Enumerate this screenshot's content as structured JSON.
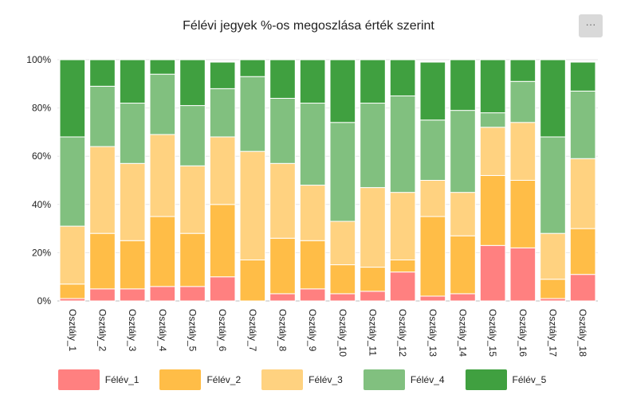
{
  "menu": {
    "label": "···"
  },
  "chart_data": {
    "type": "bar",
    "stacked": true,
    "title": "Félévi jegyek %-os megoszlása érték szerint",
    "categories": [
      "Osztály_1",
      "Osztály_2",
      "Osztály_3",
      "Osztály_4",
      "Osztály_5",
      "Osztály_6",
      "Osztály_7",
      "Osztály_8",
      "Osztály_9",
      "Osztály_10",
      "Osztály_11",
      "Osztály_12",
      "Osztály_13",
      "Osztály_14",
      "Osztály_15",
      "Osztály_16",
      "Osztály_17",
      "Osztály_18"
    ],
    "ylim": [
      0,
      100
    ],
    "yticks": [
      "0%",
      "20%",
      "40%",
      "60%",
      "80%",
      "100%"
    ],
    "grid": true,
    "legend_position": "bottom",
    "series": [
      {
        "name": "Félév_1",
        "color": "#ff8080",
        "values": [
          1,
          5,
          5,
          6,
          6,
          10,
          0,
          3,
          5,
          3,
          4,
          12,
          2,
          3,
          23,
          22,
          1,
          11
        ]
      },
      {
        "name": "Félév_2",
        "color": "#ffbd47",
        "values": [
          6,
          23,
          20,
          29,
          22,
          30,
          17,
          23,
          20,
          12,
          10,
          5,
          33,
          24,
          29,
          28,
          8,
          19
        ]
      },
      {
        "name": "Félév_3",
        "color": "#ffd280",
        "values": [
          24,
          36,
          32,
          34,
          28,
          28,
          45,
          31,
          23,
          18,
          33,
          28,
          15,
          18,
          20,
          24,
          19,
          29
        ]
      },
      {
        "name": "Félév_4",
        "color": "#81c07f",
        "values": [
          37,
          25,
          25,
          25,
          25,
          20,
          31,
          27,
          34,
          41,
          35,
          40,
          25,
          34,
          6,
          17,
          40,
          28
        ]
      },
      {
        "name": "Félév_5",
        "color": "#40a040",
        "values": [
          32,
          11,
          18,
          6,
          19,
          11,
          7,
          16,
          18,
          26,
          18,
          15,
          24,
          21,
          22,
          9,
          32,
          12
        ]
      }
    ]
  }
}
